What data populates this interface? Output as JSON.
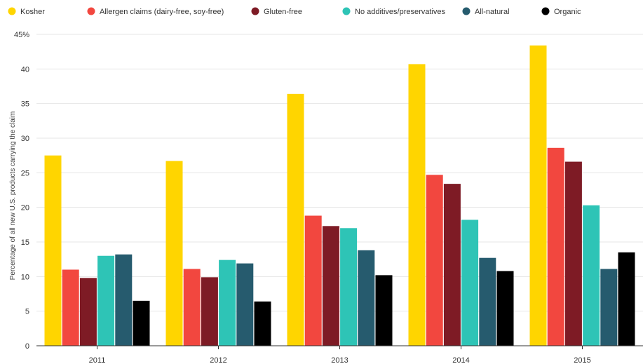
{
  "chart_data": {
    "type": "bar",
    "title": "",
    "xlabel": "",
    "ylabel": "Percentage of all new U.S. products carrying the claim",
    "ylim": [
      0,
      45
    ],
    "yticks": [
      "0",
      "5",
      "10",
      "15",
      "20",
      "25",
      "30",
      "35",
      "40",
      "45%"
    ],
    "grid": true,
    "legend_position": "top-left",
    "categories": [
      "2011",
      "2012",
      "2013",
      "2014",
      "2015"
    ],
    "series": [
      {
        "name": "Kosher",
        "color": "#ffd500",
        "values": [
          27.5,
          26.7,
          36.4,
          40.7,
          43.4
        ]
      },
      {
        "name": "Allergen claims (dairy-free, soy-free)",
        "color": "#f2473f",
        "values": [
          11.0,
          11.1,
          18.8,
          24.7,
          28.6
        ]
      },
      {
        "name": "Gluten-free",
        "color": "#7e1b25",
        "values": [
          9.8,
          9.9,
          17.3,
          23.4,
          26.6
        ]
      },
      {
        "name": "No additives/preservatives",
        "color": "#2ec4b6",
        "values": [
          13.0,
          12.4,
          17.0,
          18.2,
          20.3
        ]
      },
      {
        "name": "All-natural",
        "color": "#265b6e",
        "values": [
          13.2,
          11.9,
          13.8,
          12.7,
          11.1
        ]
      },
      {
        "name": "Organic",
        "color": "#000000",
        "values": [
          6.5,
          6.4,
          10.2,
          10.8,
          13.5
        ]
      }
    ]
  }
}
